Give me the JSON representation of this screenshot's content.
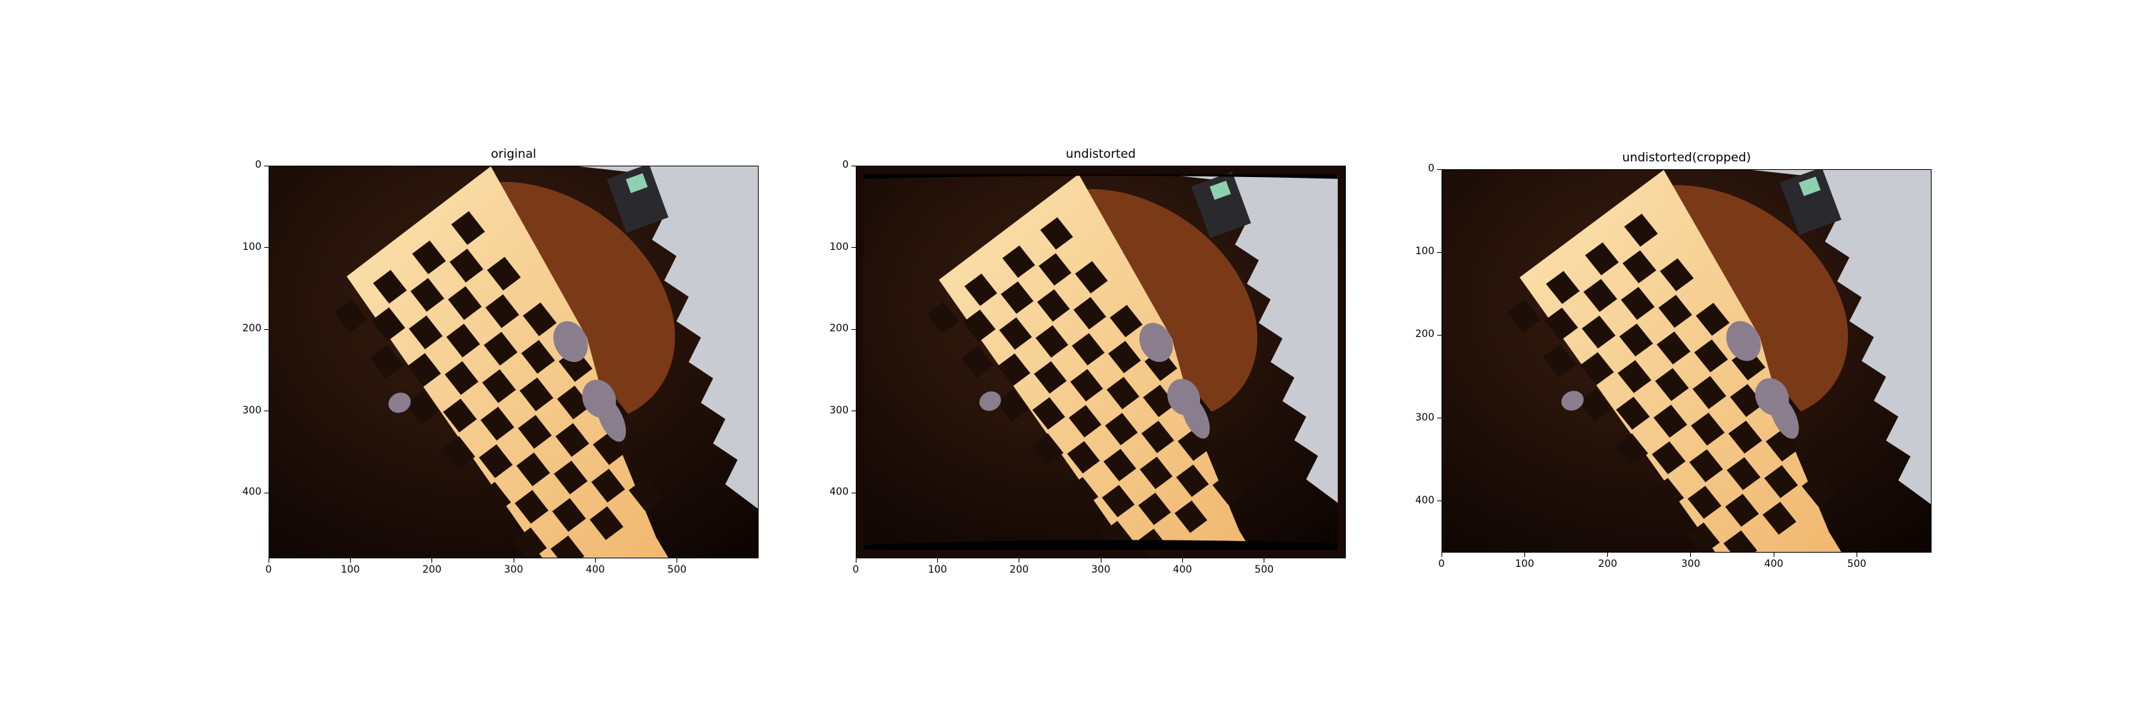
{
  "figure": {
    "panels": [
      {
        "id": "original",
        "title": "original",
        "x_ticks": [
          "0",
          "100",
          "200",
          "300",
          "400",
          "500"
        ],
        "y_ticks": [
          "0",
          "100",
          "200",
          "300",
          "400"
        ],
        "x_max": 600,
        "y_max": 480,
        "black_border": false
      },
      {
        "id": "undistorted",
        "title": "undistorted",
        "x_ticks": [
          "0",
          "100",
          "200",
          "300",
          "400",
          "500"
        ],
        "y_ticks": [
          "0",
          "100",
          "200",
          "300",
          "400"
        ],
        "x_max": 600,
        "y_max": 480,
        "black_border": true
      },
      {
        "id": "undistorted-cropped",
        "title": "undistorted(cropped)",
        "x_ticks": [
          "0",
          "100",
          "200",
          "300",
          "400",
          "500"
        ],
        "y_ticks": [
          "0",
          "100",
          "200",
          "300",
          "400"
        ],
        "x_max": 590,
        "y_max": 462,
        "black_border": false
      }
    ],
    "colors": {
      "board": "#f7d79a",
      "board_edge": "#e8b870",
      "square": "#1e0e08",
      "background": "#1a0a05",
      "sleeve": "#7a3a18",
      "wall": "#c8ccd2",
      "finger": "#8a7e8e"
    }
  }
}
